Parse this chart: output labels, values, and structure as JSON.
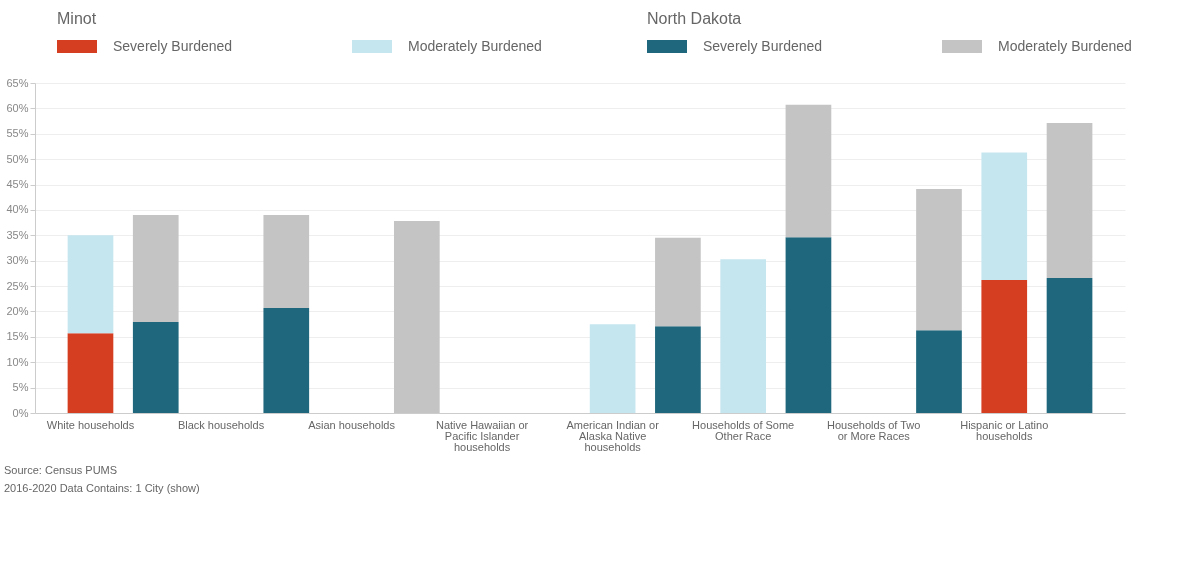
{
  "chart_data": {
    "type": "bar",
    "stacked": true,
    "grid": "y",
    "legend": "top left",
    "categories": [
      "White households",
      null,
      "Black households",
      null,
      "Asian households",
      null,
      "Native Hawaiian or Pacific Islander households",
      null,
      "American Indian or Alaska Native households",
      null,
      "Households of Some Other Race",
      null,
      "Households of Two or More Races",
      null,
      "Hispanic or Latino households",
      null
    ],
    "series": [
      {
        "name": "Severely Burdened",
        "color": "#d63e22",
        "values": [
          15.7,
          null,
          null,
          null,
          null,
          null,
          null,
          null,
          null,
          null,
          null,
          null,
          null,
          null,
          26.2,
          null
        ]
      },
      {
        "name": "Moderately Burdened",
        "color": "#c5e6ef",
        "values": [
          19.3,
          null,
          null,
          null,
          null,
          null,
          null,
          null,
          17.5,
          null,
          30.3,
          null,
          null,
          null,
          25.1,
          null
        ]
      },
      {
        "name": "Severely Burdened",
        "color": "#1e677c",
        "values": [
          null,
          17.9,
          null,
          20.7,
          null,
          null,
          null,
          null,
          null,
          17.1,
          null,
          34.6,
          null,
          16.3,
          null,
          26.6
        ]
      },
      {
        "name": "Moderately Burdened",
        "color": "#c4c4c4",
        "values": [
          null,
          21.1,
          null,
          18.3,
          null,
          37.8,
          null,
          null,
          null,
          17.4,
          null,
          26.1,
          null,
          27.8,
          null,
          30.5
        ]
      }
    ],
    "ylim": [
      0,
      65
    ],
    "yticks": [
      {
        "value": 0,
        "label": "0%"
      },
      {
        "value": 5,
        "label": "5%"
      },
      {
        "value": 10,
        "label": "10%"
      },
      {
        "value": 15,
        "label": "15%"
      },
      {
        "value": 20,
        "label": "20%"
      },
      {
        "value": 25,
        "label": "25%"
      },
      {
        "value": 30,
        "label": "30%"
      },
      {
        "value": 35,
        "label": "35%"
      },
      {
        "value": 40,
        "label": "40%"
      },
      {
        "value": 45,
        "label": "45%"
      },
      {
        "value": 50,
        "label": "50%"
      },
      {
        "value": 55,
        "label": "55%"
      },
      {
        "value": 60,
        "label": "60%"
      },
      {
        "value": 65,
        "label": "65%"
      }
    ],
    "annotations": [
      "Minot",
      "North Dakota",
      "Source: Census PUMS",
      "2016-2020 Data Contains: 1 City (show)"
    ]
  }
}
